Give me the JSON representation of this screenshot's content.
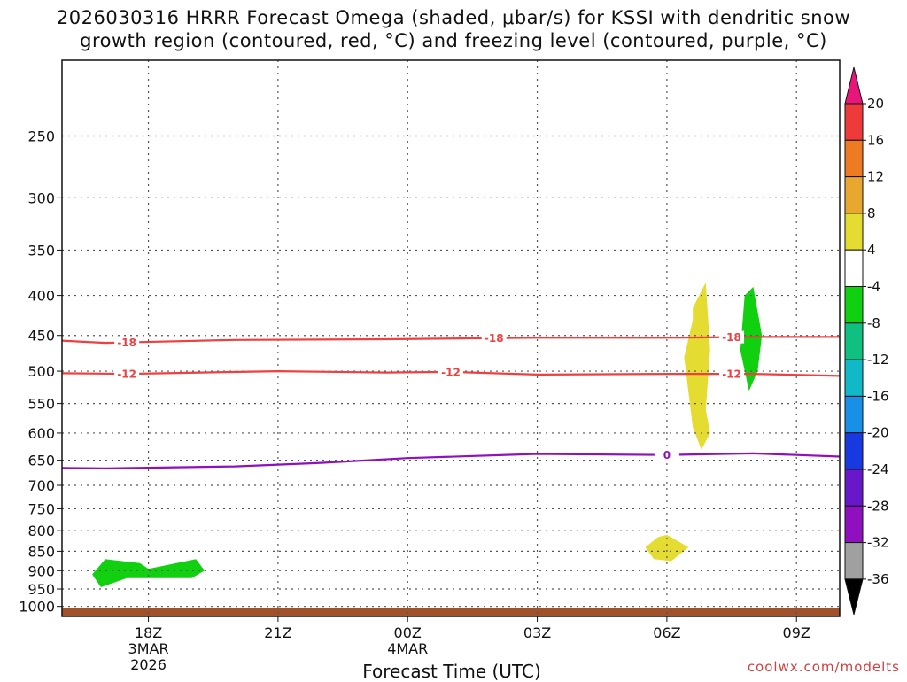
{
  "title_line1": "2026030316 HRRR Forecast Omega (shaded, μbar/s) for KSSI with dendritic snow",
  "title_line2": "growth region (contoured, red, °C) and freezing level (contoured, purple, °C)",
  "credit": "coolwx.com/modelts",
  "chart_data": {
    "type": "time-height cross section",
    "xlabel": "Forecast Time (UTC)",
    "x_ticks": [
      {
        "label": "18Z",
        "sub1": "3MAR",
        "sub2": "2026",
        "hour": 18
      },
      {
        "label": "21Z",
        "sub1": "",
        "sub2": "",
        "hour": 21
      },
      {
        "label": "00Z",
        "sub1": "4MAR",
        "sub2": "",
        "hour": 24
      },
      {
        "label": "03Z",
        "sub1": "",
        "sub2": "",
        "hour": 27
      },
      {
        "label": "06Z",
        "sub1": "",
        "sub2": "",
        "hour": 30
      },
      {
        "label": "09Z",
        "sub1": "",
        "sub2": "",
        "hour": 33
      }
    ],
    "x_range_hours": [
      16,
      34
    ],
    "y_ticks": [
      250,
      300,
      350,
      400,
      450,
      500,
      550,
      600,
      650,
      700,
      750,
      800,
      850,
      900,
      950,
      1000
    ],
    "y_range_hPa": [
      200,
      1030
    ],
    "grid": true,
    "colorbar": {
      "labels": [
        20,
        16,
        12,
        8,
        4,
        -4,
        -8,
        -12,
        -16,
        -20,
        -24,
        -28,
        -32,
        -36
      ],
      "colors": [
        "#e8167a",
        "#ee3a3a",
        "#ee7a22",
        "#e8a830",
        "#e4dc30",
        "#ffffff",
        "#10d010",
        "#10c080",
        "#10b8c8",
        "#1890e8",
        "#1838e0",
        "#6818c8",
        "#9010c0",
        "#a0a0a0",
        "#000000"
      ]
    },
    "contours": [
      {
        "value": -18,
        "label": "-18",
        "color": "#ee4040",
        "points": [
          [
            16.0,
            457
          ],
          [
            17.0,
            460
          ],
          [
            20.0,
            456
          ],
          [
            23.5,
            455
          ],
          [
            27.0,
            453
          ],
          [
            30.0,
            453
          ],
          [
            32.0,
            452
          ],
          [
            34.0,
            452
          ]
        ]
      },
      {
        "value": -12,
        "label": "-12",
        "color": "#ee4040",
        "points": [
          [
            16.0,
            503
          ],
          [
            17.5,
            504
          ],
          [
            21.0,
            500
          ],
          [
            23.5,
            502
          ],
          [
            25.0,
            501
          ],
          [
            27.0,
            505
          ],
          [
            30.0,
            504
          ],
          [
            32.0,
            504
          ],
          [
            34.0,
            507
          ]
        ]
      },
      {
        "value": 0,
        "label": "0",
        "color": "#9010c0",
        "points": [
          [
            16.0,
            665
          ],
          [
            17.0,
            666
          ],
          [
            20.0,
            662
          ],
          [
            22.0,
            655
          ],
          [
            24.0,
            646
          ],
          [
            27.0,
            638
          ],
          [
            30.0,
            640
          ],
          [
            32.0,
            637
          ],
          [
            34.0,
            643
          ]
        ]
      }
    ],
    "omega_regions": [
      {
        "range": "-8 to -4",
        "color": "#10d010",
        "points": [
          [
            16.7,
            910
          ],
          [
            17.0,
            870
          ],
          [
            17.8,
            880
          ],
          [
            18.0,
            895
          ],
          [
            19.1,
            870
          ],
          [
            19.3,
            900
          ],
          [
            19.0,
            920
          ],
          [
            17.5,
            920
          ],
          [
            16.9,
            945
          ]
        ]
      },
      {
        "range": "4 to 8",
        "color": "#e4dc30",
        "points": [
          [
            30.6,
            415
          ],
          [
            30.9,
            385
          ],
          [
            31.0,
            470
          ],
          [
            30.9,
            560
          ],
          [
            31.0,
            600
          ],
          [
            30.8,
            630
          ],
          [
            30.6,
            590
          ],
          [
            30.4,
            480
          ],
          [
            30.6,
            430
          ]
        ]
      },
      {
        "range": "-8 to -4",
        "color": "#10d010",
        "points": [
          [
            31.8,
            400
          ],
          [
            32.0,
            390
          ],
          [
            32.2,
            450
          ],
          [
            32.1,
            500
          ],
          [
            31.9,
            530
          ],
          [
            31.7,
            470
          ]
        ]
      },
      {
        "range": "4 to 8",
        "color": "#e4dc30",
        "points": [
          [
            29.5,
            840
          ],
          [
            29.8,
            815
          ],
          [
            30.0,
            810
          ],
          [
            30.5,
            840
          ],
          [
            30.1,
            875
          ],
          [
            29.7,
            870
          ]
        ]
      }
    ],
    "terrain_color": "#a0522d"
  }
}
